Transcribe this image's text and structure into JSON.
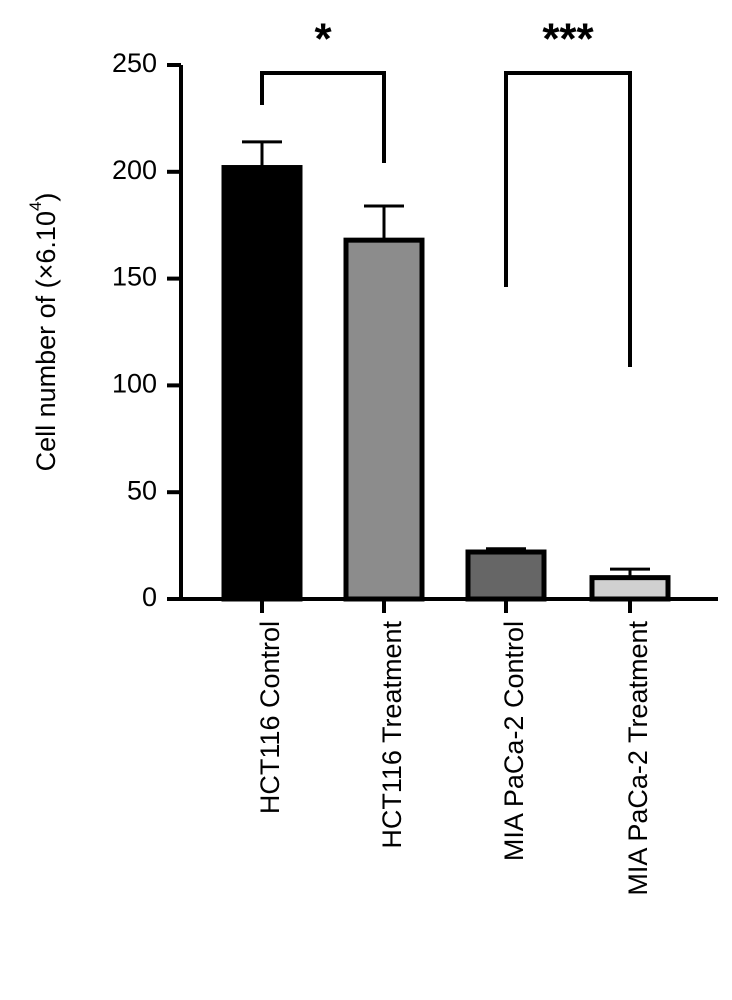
{
  "chart_data": {
    "type": "bar",
    "title": "",
    "xlabel": "",
    "ylabel_main": "Cell number of (×6.10",
    "ylabel_sup": "4",
    "ylabel_close": ")",
    "ylim": [
      0,
      250
    ],
    "yticks": [
      0,
      50,
      100,
      150,
      200,
      250
    ],
    "categories": [
      "HCT116 Control",
      "HCT116 Treatment",
      "MIA PaCa-2 Control",
      "MIA PaCa-2 Treatment"
    ],
    "values": [
      202,
      168,
      22,
      10
    ],
    "errors": [
      12,
      16,
      1.5,
      4
    ],
    "bar_colors": [
      "#000000",
      "#8c8c8c",
      "#666666",
      "#d0d0d0"
    ],
    "significance": [
      {
        "from": 0,
        "to": 1,
        "label": "*"
      },
      {
        "from": 2,
        "to": 3,
        "label": "***"
      }
    ]
  }
}
